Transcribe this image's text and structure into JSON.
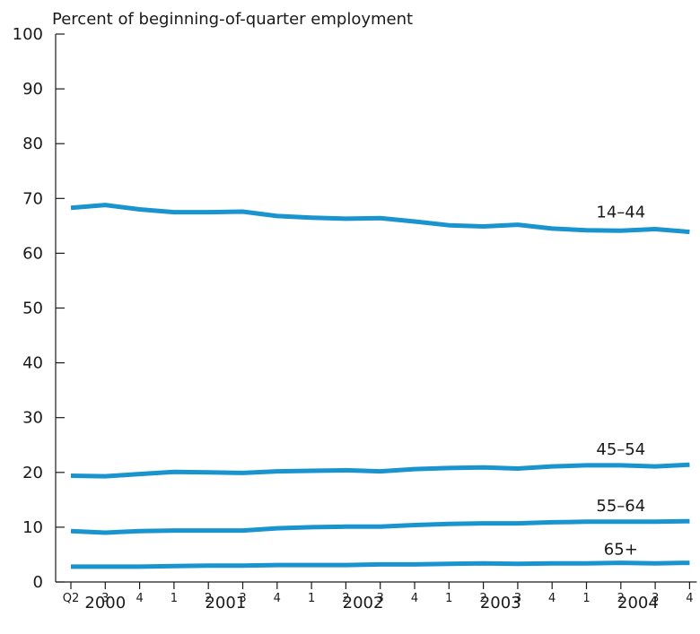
{
  "chart_data": {
    "type": "line",
    "ylabel": "Percent of beginning-of-quarter employment",
    "ylim": [
      0,
      100
    ],
    "yticks": [
      0,
      10,
      20,
      30,
      40,
      50,
      60,
      70,
      80,
      90,
      100
    ],
    "categories": [
      "Q2",
      "3",
      "4",
      "1",
      "2",
      "3",
      "4",
      "1",
      "2",
      "3",
      "4",
      "1",
      "2",
      "3",
      "4",
      "1",
      "2",
      "3",
      "4"
    ],
    "years": [
      {
        "label": "2000",
        "start_index": 0,
        "end_index": 2
      },
      {
        "label": "2001",
        "start_index": 3,
        "end_index": 6
      },
      {
        "label": "2002",
        "start_index": 7,
        "end_index": 10
      },
      {
        "label": "2003",
        "start_index": 11,
        "end_index": 14
      },
      {
        "label": "2004",
        "start_index": 15,
        "end_index": 18
      }
    ],
    "line_color": "#1994cf",
    "grid": false,
    "series": [
      {
        "name": "14–44",
        "values": [
          68.3,
          68.8,
          68.0,
          67.5,
          67.5,
          67.6,
          66.8,
          66.5,
          66.3,
          66.4,
          65.8,
          65.1,
          64.9,
          65.2,
          64.5,
          64.2,
          64.1,
          64.4,
          63.9
        ]
      },
      {
        "name": "45–54",
        "values": [
          19.4,
          19.3,
          19.7,
          20.1,
          20.0,
          19.9,
          20.2,
          20.3,
          20.4,
          20.2,
          20.6,
          20.8,
          20.9,
          20.7,
          21.1,
          21.3,
          21.3,
          21.1,
          21.4
        ]
      },
      {
        "name": "55–64",
        "values": [
          9.3,
          9.0,
          9.3,
          9.4,
          9.4,
          9.4,
          9.8,
          10.0,
          10.1,
          10.1,
          10.4,
          10.6,
          10.7,
          10.7,
          10.9,
          11.0,
          11.0,
          11.0,
          11.1
        ]
      },
      {
        "name": "65+",
        "values": [
          2.8,
          2.8,
          2.8,
          2.9,
          3.0,
          3.0,
          3.1,
          3.1,
          3.1,
          3.2,
          3.2,
          3.3,
          3.4,
          3.3,
          3.4,
          3.4,
          3.5,
          3.4,
          3.5
        ]
      }
    ]
  }
}
